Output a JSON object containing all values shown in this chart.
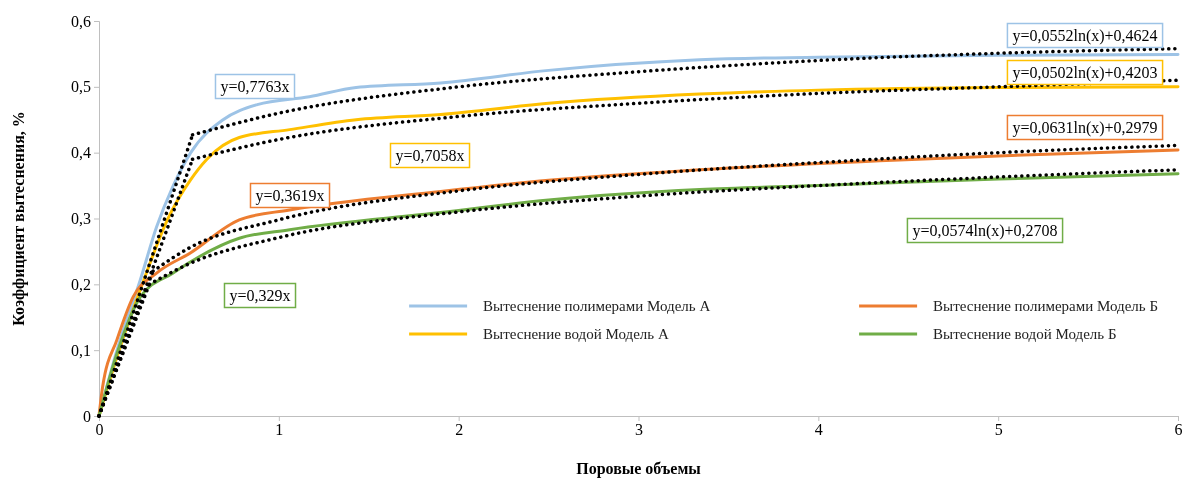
{
  "chart_data": {
    "type": "line",
    "xlabel": "Поровые объемы",
    "ylabel": "Коэффициент вытеснения, %",
    "xlim": [
      0,
      6
    ],
    "xticks": [
      0,
      1,
      2,
      3,
      4,
      5,
      6
    ],
    "ylim": [
      0,
      0.6
    ],
    "yticks": [
      0,
      {
        "value": 0.1,
        "label": "0,1"
      },
      {
        "value": 0.2,
        "label": "0,2"
      },
      {
        "value": 0.3,
        "label": "0,3"
      },
      {
        "value": 0.4,
        "label": "0,4"
      },
      {
        "value": 0.5,
        "label": "0,5"
      },
      {
        "value": 0.6,
        "label": "0,6"
      }
    ],
    "grid": false,
    "legend": "bottom right",
    "marker": "none",
    "series": [
      {
        "name": "Вытеснение полимерами Модель А",
        "color": "#9dc3e6",
        "x": [
          0,
          0.1,
          0.23,
          0.32,
          0.41,
          0.51,
          0.69,
          0.88,
          1.17,
          1.43,
          1.9,
          2.5,
          3.34,
          4,
          5,
          6
        ],
        "values": [
          0,
          0.1,
          0.207,
          0.287,
          0.348,
          0.4,
          0.45,
          0.473,
          0.485,
          0.499,
          0.506,
          0.525,
          0.541,
          0.545,
          0.548,
          0.549
        ]
      },
      {
        "name": "Вытеснение водой Модель А",
        "color": "#ffc000",
        "x": [
          0,
          0.1,
          0.25,
          0.38,
          0.51,
          0.6,
          0.78,
          1.06,
          1.43,
          1.9,
          2.5,
          3.34,
          4,
          5,
          6
        ],
        "values": [
          0,
          0.09,
          0.207,
          0.298,
          0.359,
          0.39,
          0.423,
          0.435,
          0.45,
          0.458,
          0.475,
          0.489,
          0.495,
          0.499,
          0.5
        ]
      },
      {
        "name": "Вытеснение полимерами Модель Б",
        "color": "#ed7d31",
        "x": [
          0,
          0.02,
          0.1,
          0.19,
          0.32,
          0.51,
          0.78,
          1.06,
          1.9,
          2.5,
          3.34,
          4.45,
          5,
          6
        ],
        "values": [
          0,
          0.044,
          0.116,
          0.181,
          0.217,
          0.248,
          0.298,
          0.313,
          0.341,
          0.358,
          0.374,
          0.389,
          0.395,
          0.404
        ]
      },
      {
        "name": "Вытеснение водой Модель Б",
        "color": "#70ad47",
        "x": [
          0,
          0.1,
          0.23,
          0.41,
          0.78,
          1.06,
          1.9,
          2.5,
          3.34,
          4,
          5,
          6
        ],
        "values": [
          0,
          0.095,
          0.181,
          0.217,
          0.27,
          0.283,
          0.309,
          0.328,
          0.344,
          0.35,
          0.36,
          0.368
        ]
      },
      {
        "color": "#000000",
        "line_style": "dotted",
        "x": [
          0,
          0.52
        ],
        "values": [
          0,
          0.427
        ]
      },
      {
        "color": "#000000",
        "line_style": "dotted",
        "x": [
          0.52,
          1,
          2,
          3,
          4,
          5,
          6
        ],
        "values": [
          0.427,
          0.46,
          0.5,
          0.523,
          0.54,
          0.551,
          0.558
        ]
      },
      {
        "color": "#000000",
        "line_style": "dotted",
        "x": [
          0,
          0.52
        ],
        "values": [
          0,
          0.39
        ]
      },
      {
        "color": "#000000",
        "line_style": "dotted",
        "x": [
          0.52,
          1,
          2,
          3,
          4,
          5,
          6
        ],
        "values": [
          0.39,
          0.42,
          0.455,
          0.475,
          0.49,
          0.5,
          0.51
        ]
      },
      {
        "color": "#000000",
        "line_style": "dotted",
        "x": [
          0,
          0.3
        ],
        "values": [
          0,
          0.22
        ]
      },
      {
        "color": "#000000",
        "line_style": "dotted",
        "x": [
          0.3,
          0.5,
          1,
          2,
          3,
          4,
          5,
          6
        ],
        "values": [
          0.22,
          0.255,
          0.298,
          0.342,
          0.367,
          0.385,
          0.4,
          0.411
        ]
      },
      {
        "color": "#000000",
        "line_style": "dotted",
        "x": [
          0,
          0.28
        ],
        "values": [
          0,
          0.2
        ]
      },
      {
        "color": "#000000",
        "line_style": "dotted",
        "x": [
          0.28,
          0.5,
          1,
          2,
          3,
          4,
          5,
          6
        ],
        "values": [
          0.2,
          0.231,
          0.271,
          0.31,
          0.334,
          0.35,
          0.363,
          0.374
        ]
      }
    ],
    "annotations": [
      "y=0,7763x",
      "y=0,0552ln(x)+0,4624",
      "y=0,7058x",
      "y=0,0502ln(x)+0,4203",
      "y=0,3619x",
      "y=0,0631ln(x)+0,2979",
      "y=0,329x",
      "y=0,0574ln(x)+0,2708"
    ]
  }
}
